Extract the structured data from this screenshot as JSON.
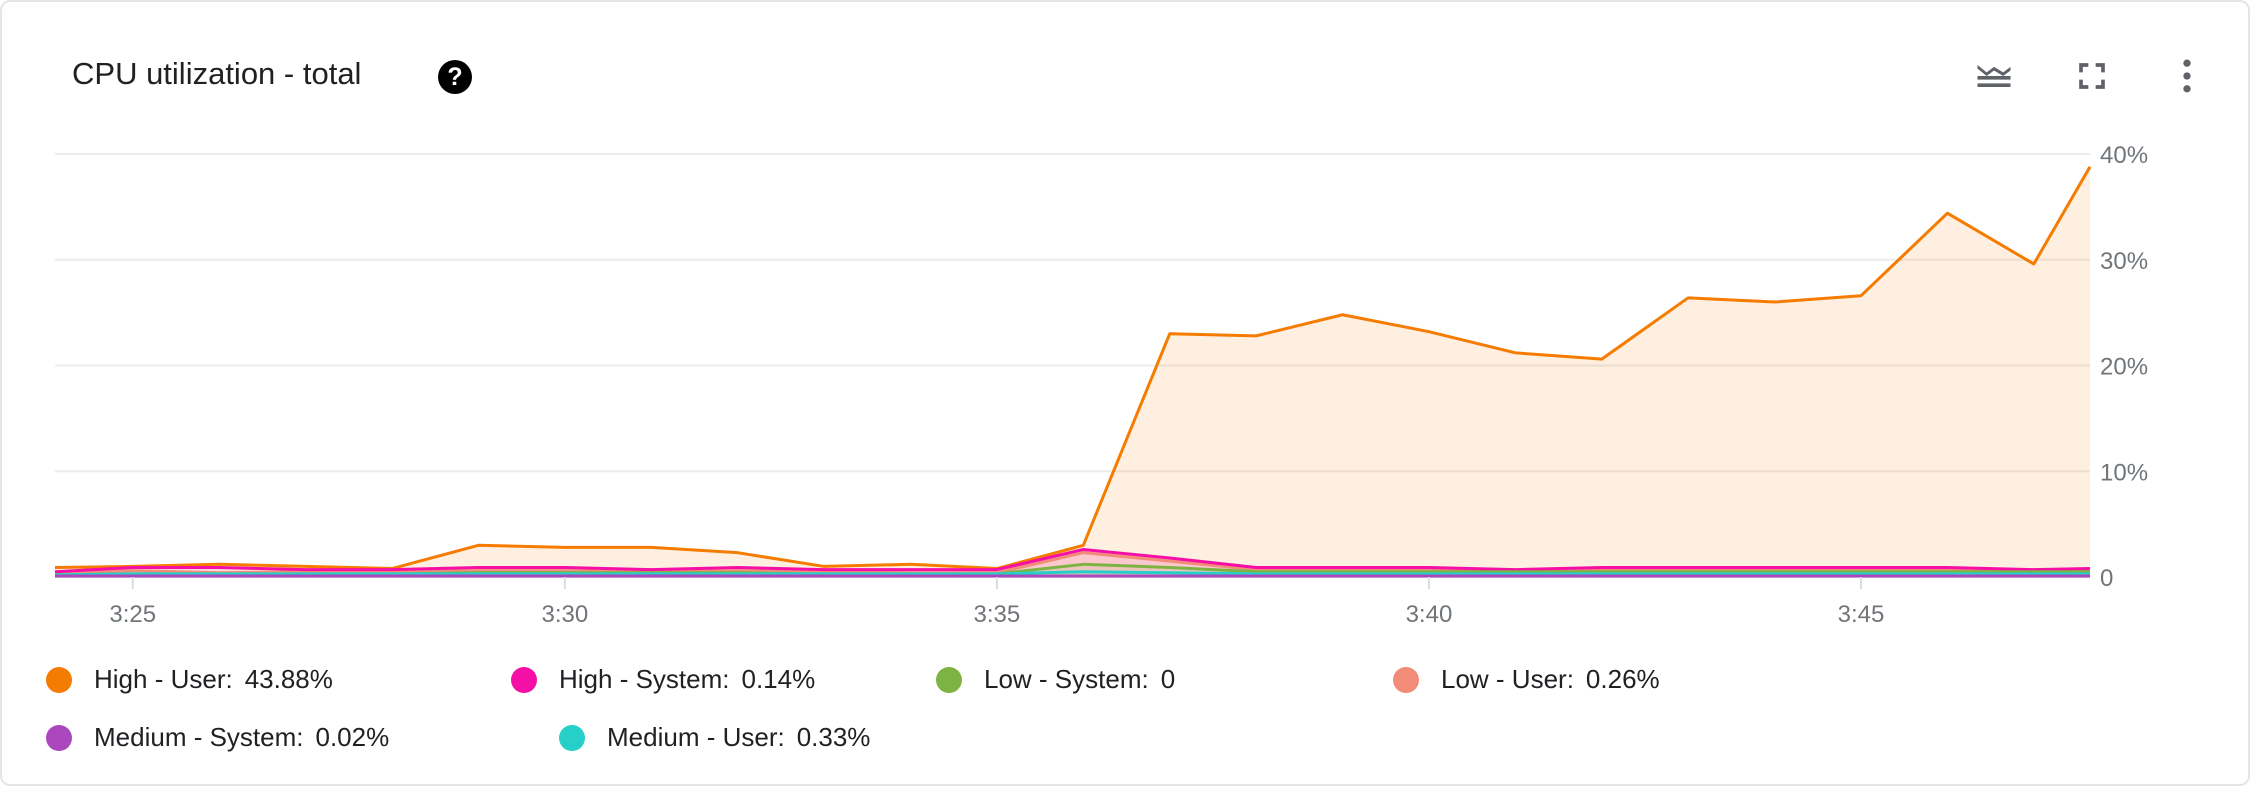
{
  "header": {
    "title": "CPU utilization - total",
    "help_icon": "help-circle-icon",
    "toolbar": [
      "legend-toggle-icon",
      "fullscreen-icon",
      "more-vert-icon"
    ]
  },
  "chart_data": {
    "type": "line",
    "title": "CPU utilization - total",
    "xlabel": "",
    "ylabel": "",
    "x_ticks": [
      "3:25",
      "3:30",
      "3:35",
      "3:40",
      "3:45"
    ],
    "y_ticks": [
      "0",
      "10%",
      "20%",
      "30%",
      "40%"
    ],
    "xlim": [
      "3:24:06",
      "3:47:39"
    ],
    "ylim": [
      0,
      40
    ],
    "grid": true,
    "legend_position": "bottom",
    "x": [
      "3:24:06",
      "3:25",
      "3:26",
      "3:27",
      "3:28",
      "3:29",
      "3:30",
      "3:31",
      "3:32",
      "3:33",
      "3:34",
      "3:35",
      "3:36",
      "3:37",
      "3:38",
      "3:39",
      "3:40",
      "3:41",
      "3:42",
      "3:43",
      "3:44",
      "3:45",
      "3:46",
      "3:47",
      "3:47:39"
    ],
    "series": [
      {
        "name": "High - System",
        "legend_value": "0.14%",
        "color": "#f50fa6",
        "values": [
          0.5,
          0.9,
          0.9,
          0.7,
          0.7,
          0.9,
          0.9,
          0.7,
          0.9,
          0.7,
          0.7,
          0.7,
          2.6,
          1.8,
          0.9,
          0.9,
          0.9,
          0.7,
          0.9,
          0.9,
          0.9,
          0.9,
          0.9,
          0.7,
          0.8
        ]
      },
      {
        "name": "High - User",
        "legend_value": "43.88%",
        "color": "#f57c00",
        "values": [
          0.9,
          1.0,
          1.2,
          1.0,
          0.8,
          3.0,
          2.8,
          2.8,
          2.3,
          1.0,
          1.2,
          0.8,
          3.0,
          23.0,
          22.8,
          24.8,
          23.2,
          21.2,
          20.6,
          26.4,
          26.0,
          26.6,
          34.4,
          29.6,
          38.8
        ]
      },
      {
        "name": "Low - System",
        "legend_value": "0",
        "color": "#7cb342",
        "values": [
          0.2,
          0.3,
          0.3,
          0.3,
          0.3,
          0.4,
          0.4,
          0.4,
          0.4,
          0.3,
          0.3,
          0.3,
          1.2,
          0.9,
          0.5,
          0.5,
          0.5,
          0.5,
          0.5,
          0.5,
          0.5,
          0.5,
          0.5,
          0.5,
          0.5
        ]
      },
      {
        "name": "Low - User",
        "legend_value": "0.26%",
        "color": "#f28b78",
        "values": [
          0.3,
          0.6,
          0.4,
          0.5,
          0.5,
          0.6,
          0.6,
          0.5,
          0.6,
          0.5,
          0.4,
          0.4,
          2.3,
          1.5,
          0.7,
          0.7,
          0.7,
          0.6,
          0.7,
          0.7,
          0.7,
          0.7,
          0.7,
          0.6,
          0.6
        ]
      },
      {
        "name": "Medium - System",
        "legend_value": "0.02%",
        "color": "#ab47bc",
        "values": [
          0.1,
          0.1,
          0.1,
          0.1,
          0.1,
          0.1,
          0.1,
          0.1,
          0.1,
          0.1,
          0.1,
          0.1,
          0.1,
          0.1,
          0.1,
          0.1,
          0.1,
          0.1,
          0.1,
          0.1,
          0.1,
          0.1,
          0.1,
          0.1,
          0.1
        ]
      },
      {
        "name": "Medium - User",
        "legend_value": "0.33%",
        "color": "#26d0c8",
        "values": [
          0.2,
          0.3,
          0.3,
          0.3,
          0.3,
          0.3,
          0.3,
          0.3,
          0.3,
          0.3,
          0.3,
          0.3,
          0.5,
          0.4,
          0.3,
          0.3,
          0.3,
          0.3,
          0.3,
          0.3,
          0.3,
          0.3,
          0.3,
          0.3,
          0.3
        ]
      }
    ]
  }
}
